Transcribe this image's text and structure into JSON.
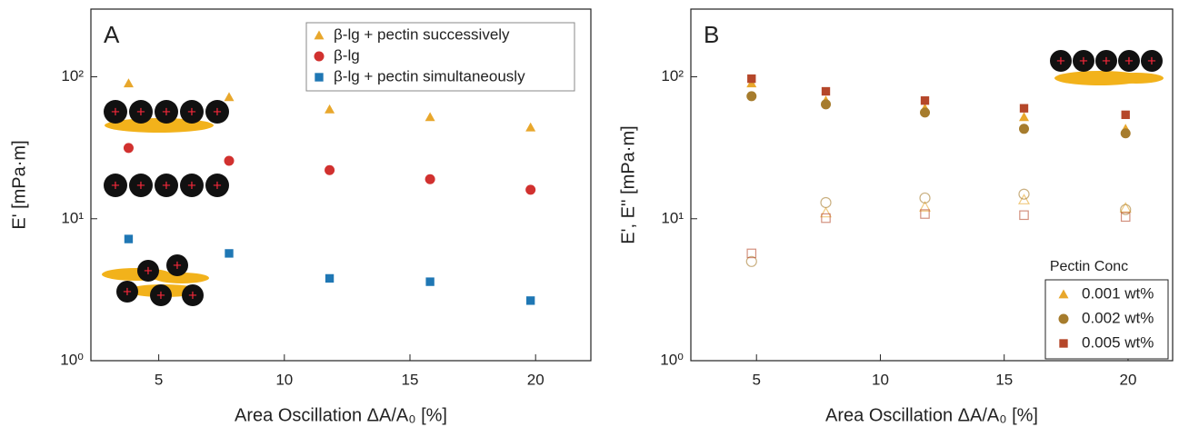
{
  "chart_data": [
    {
      "type": "scatter",
      "panel": "A",
      "ylog": true,
      "xlabel": "Area Oscillation ΔA/A₀ [%]",
      "ylabel": "E' [mPa·m]",
      "x": [
        3.8,
        7.8,
        11.8,
        15.8,
        19.8
      ],
      "xlim": [
        2.3,
        22.2
      ],
      "xticks": [
        5,
        10,
        15,
        20
      ],
      "ylim": [
        1,
        300
      ],
      "yticks": [
        {
          "value": 1,
          "label": "10⁰"
        },
        {
          "value": 10,
          "label": "10¹"
        },
        {
          "value": 100,
          "label": "10²"
        }
      ],
      "legend": "upper right",
      "series": [
        {
          "name": "β-lg + pectin successively",
          "color": "#e8a72c",
          "marker": "triangle",
          "values": [
            90,
            72,
            59,
            52,
            44
          ]
        },
        {
          "name": "β-lg",
          "color": "#d1312f",
          "marker": "circle",
          "values": [
            31.5,
            25.6,
            22,
            19,
            16
          ]
        },
        {
          "name": "β-lg + pectin simultaneously",
          "color": "#1f77b4",
          "marker": "square",
          "values": [
            7.2,
            5.7,
            3.8,
            3.6,
            2.65
          ]
        }
      ]
    },
    {
      "type": "scatter",
      "panel": "B",
      "ylog": true,
      "xlabel": "Area Oscillation ΔA/A₀ [%]",
      "ylabel": "E', E'' [mPa·m]",
      "x": [
        4.8,
        7.8,
        11.8,
        15.8,
        19.9
      ],
      "xlim": [
        2.35,
        21.8
      ],
      "xticks": [
        5,
        10,
        15,
        20
      ],
      "ylim": [
        1,
        300
      ],
      "yticks": [
        {
          "value": 1,
          "label": "10⁰"
        },
        {
          "value": 10,
          "label": "10¹"
        },
        {
          "value": 100,
          "label": "10²"
        }
      ],
      "legend": "lower right",
      "legend_title": "Pectin Conc",
      "series": [
        {
          "name": "0.001 wt%",
          "color": "#e8a72c",
          "marker": "triangle",
          "values": [
            90,
            68,
            60,
            52,
            43
          ],
          "values_open": [
            null,
            11,
            12.1,
            13.6,
            11.9
          ]
        },
        {
          "name": "0.002 wt%",
          "color": "#a67c2d",
          "marker": "circle",
          "values": [
            73,
            64,
            56,
            43,
            40
          ],
          "values_open": [
            5.0,
            13,
            14,
            14.9,
            11.6
          ]
        },
        {
          "name": "0.005 wt%",
          "color": "#b5472a",
          "marker": "square",
          "values": [
            97,
            79,
            68,
            60,
            54
          ],
          "values_open": [
            5.7,
            10.1,
            10.8,
            10.6,
            10.3
          ]
        }
      ]
    }
  ]
}
